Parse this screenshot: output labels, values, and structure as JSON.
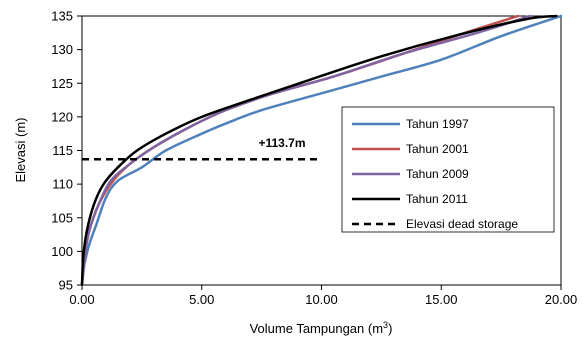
{
  "chart_data": {
    "type": "line",
    "xlabel": "Volume Tampungan (m",
    "xlabel_sup": "3",
    "xlabel_suffix": ")",
    "ylabel": "Elevasi (m)",
    "xlim": [
      0,
      20
    ],
    "ylim": [
      95,
      135
    ],
    "x_ticks": [
      0,
      5,
      10,
      15,
      20
    ],
    "x_tick_labels": [
      "0.00",
      "5.00",
      "10.00",
      "15.00",
      "20.00"
    ],
    "y_ticks": [
      95,
      100,
      105,
      110,
      115,
      120,
      125,
      130,
      135
    ],
    "y_tick_labels": [
      "95",
      "100",
      "105",
      "110",
      "115",
      "120",
      "125",
      "130",
      "135"
    ],
    "grid": "none",
    "legend_position": "right",
    "series": [
      {
        "name": "Tahun 1997",
        "color": "#4f81bd",
        "points": [
          [
            0,
            95
          ],
          [
            0.1,
            98
          ],
          [
            0.3,
            101
          ],
          [
            0.6,
            104
          ],
          [
            1.0,
            108
          ],
          [
            1.5,
            110.5
          ],
          [
            2.5,
            112.5
          ],
          [
            3.5,
            115
          ],
          [
            5.0,
            117.5
          ],
          [
            6.0,
            119
          ],
          [
            7.5,
            121
          ],
          [
            10,
            123.5
          ],
          [
            12.5,
            126
          ],
          [
            15,
            128.5
          ],
          [
            17.5,
            132
          ],
          [
            20,
            135
          ]
        ]
      },
      {
        "name": "Tahun 2001",
        "color": "#c0504d",
        "points": [
          [
            0,
            95
          ],
          [
            0.1,
            99
          ],
          [
            0.3,
            103
          ],
          [
            0.7,
            107
          ],
          [
            1.3,
            110.5
          ],
          [
            2.0,
            113
          ],
          [
            3.0,
            115.5
          ],
          [
            4.5,
            118.5
          ],
          [
            6.0,
            121
          ],
          [
            8.0,
            123.5
          ],
          [
            10.5,
            126
          ],
          [
            13.5,
            129.5
          ],
          [
            16,
            132.5
          ],
          [
            18.2,
            135
          ]
        ]
      },
      {
        "name": "Tahun 2009",
        "color": "#8064a2",
        "points": [
          [
            0,
            95
          ],
          [
            0.1,
            99
          ],
          [
            0.3,
            103
          ],
          [
            0.7,
            107
          ],
          [
            1.2,
            110.5
          ],
          [
            2.0,
            113
          ],
          [
            3.0,
            115.5
          ],
          [
            4.5,
            118.5
          ],
          [
            6.0,
            121
          ],
          [
            8.0,
            123.5
          ],
          [
            10.5,
            126
          ],
          [
            13.5,
            129.5
          ],
          [
            16.5,
            132.5
          ],
          [
            18.7,
            135
          ]
        ]
      },
      {
        "name": "Tahun 2011",
        "color": "#000000",
        "points": [
          [
            0,
            95
          ],
          [
            0.05,
            99
          ],
          [
            0.2,
            103
          ],
          [
            0.5,
            107
          ],
          [
            0.9,
            110
          ],
          [
            1.5,
            112.5
          ],
          [
            2.3,
            115
          ],
          [
            3.5,
            117.5
          ],
          [
            5.0,
            120
          ],
          [
            7.0,
            122.5
          ],
          [
            9.5,
            125.5
          ],
          [
            12.5,
            129
          ],
          [
            15.5,
            132
          ],
          [
            18.5,
            134.5
          ],
          [
            19.8,
            135
          ]
        ]
      }
    ],
    "reference_line": {
      "name": "Elevasi dead storage",
      "y": 113.7,
      "x_range": [
        0,
        10
      ],
      "color": "#000000",
      "style": "dashed"
    },
    "annotation": {
      "text": "+113.7m"
    }
  }
}
